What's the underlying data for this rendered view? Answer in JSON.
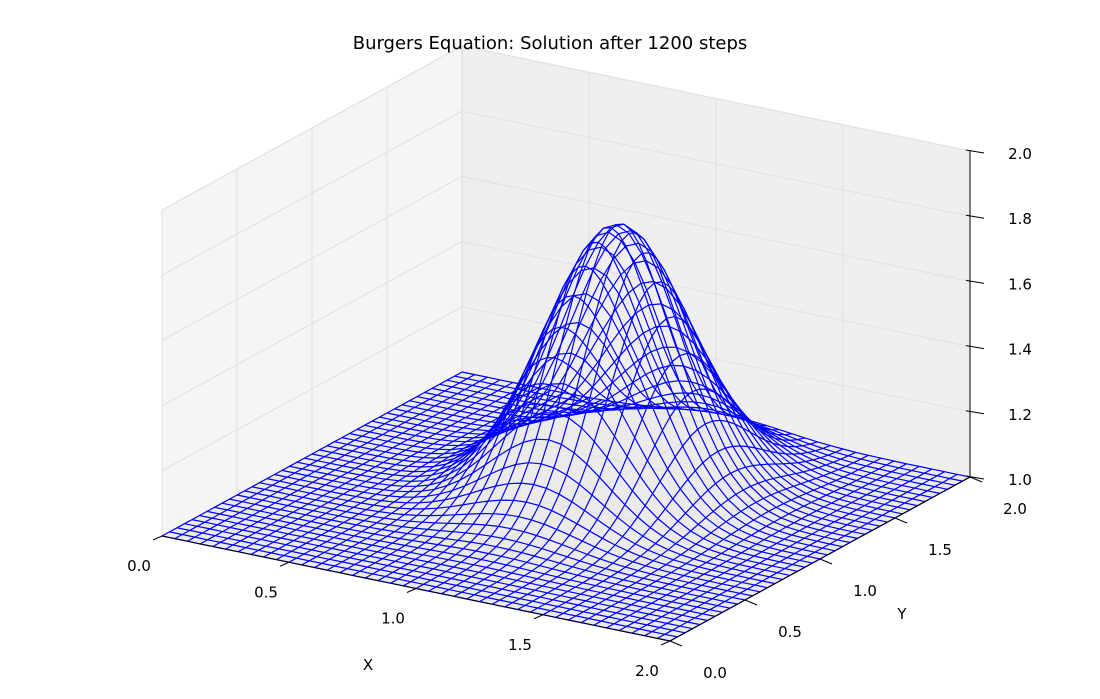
{
  "chart_data": {
    "type": "surface-wireframe",
    "title": "Burgers Equation: Solution after 1200 steps",
    "xlabel": "X",
    "ylabel": "Y",
    "zlabel": "",
    "xlim": [
      0.0,
      2.0
    ],
    "ylim": [
      0.0,
      2.0
    ],
    "zlim": [
      1.0,
      2.0
    ],
    "x_ticks": [
      "0.0",
      "0.5",
      "1.0",
      "1.5",
      "2.0"
    ],
    "y_ticks": [
      "0.0",
      "0.5",
      "1.0",
      "1.5",
      "2.0"
    ],
    "z_ticks": [
      "1.0",
      "1.2",
      "1.4",
      "1.6",
      "1.8",
      "2.0"
    ],
    "grid": true,
    "line_color": "#0000ff",
    "pane_colors": {
      "back": "#efefef",
      "side": "#f5f5f5",
      "floor": "#ebebeb"
    },
    "grid_points": 41,
    "surface_peak": {
      "x": 1.05,
      "y": 1.25,
      "z": 1.81
    },
    "series": [
      {
        "values": []
      }
    ]
  }
}
